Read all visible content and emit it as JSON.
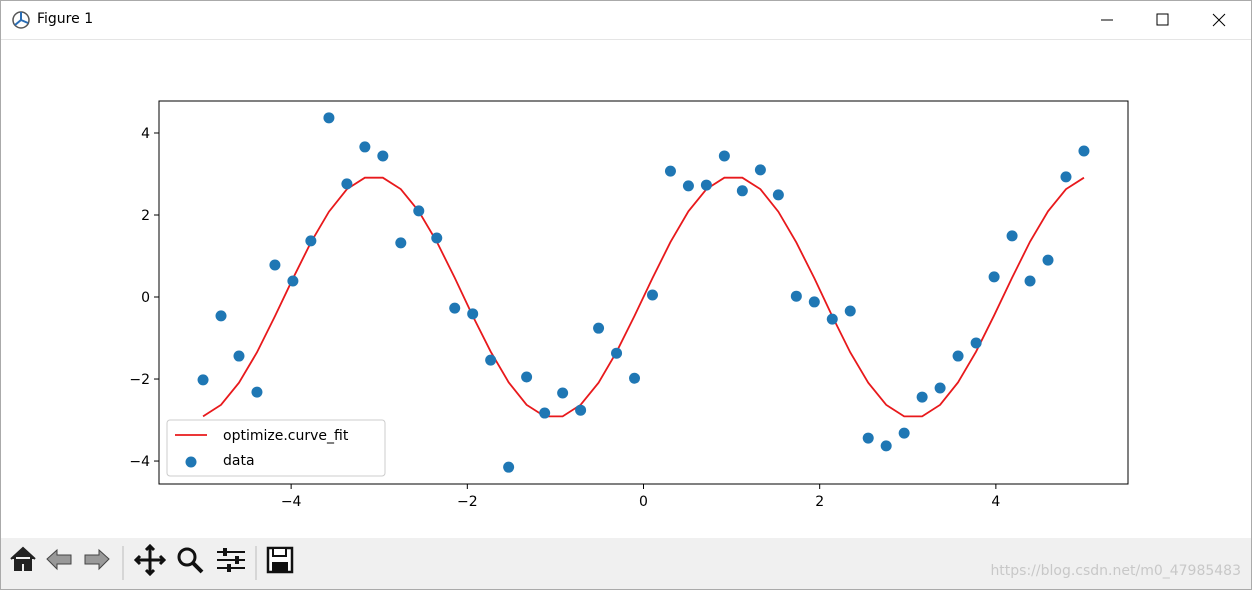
{
  "window": {
    "title": "Figure 1"
  },
  "watermark": "https://blog.csdn.net/m0_47985483",
  "chart_data": {
    "type": "scatter",
    "x": [
      -5.0,
      -4.796,
      -4.592,
      -4.388,
      -4.184,
      -3.98,
      -3.776,
      -3.571,
      -3.367,
      -3.163,
      -2.959,
      -2.755,
      -2.551,
      -2.347,
      -2.143,
      -1.939,
      -1.735,
      -1.531,
      -1.327,
      -1.122,
      -0.918,
      -0.714,
      -0.51,
      -0.306,
      -0.102,
      0.102,
      0.306,
      0.51,
      0.714,
      0.918,
      1.122,
      1.327,
      1.531,
      1.735,
      1.939,
      2.143,
      2.347,
      2.551,
      2.755,
      2.959,
      3.163,
      3.367,
      3.571,
      3.776,
      3.98,
      4.184,
      4.388,
      4.592,
      4.796,
      5.0
    ],
    "series": [
      {
        "name": "optimize.curve_fit",
        "color": "#e8191c",
        "style": "line",
        "values": [
          -2.91,
          -2.63,
          -2.09,
          -1.35,
          -0.47,
          0.45,
          1.33,
          2.08,
          2.63,
          2.91,
          2.91,
          2.63,
          2.09,
          1.35,
          0.47,
          -0.46,
          -1.33,
          -2.08,
          -2.63,
          -2.91,
          -2.91,
          -2.63,
          -2.09,
          -1.34,
          -0.46,
          0.46,
          1.34,
          2.09,
          2.63,
          2.91,
          2.91,
          2.63,
          2.08,
          1.33,
          0.46,
          -0.47,
          -1.35,
          -2.09,
          -2.63,
          -2.91,
          -2.91,
          -2.63,
          -2.08,
          -1.33,
          -0.45,
          0.47,
          1.35,
          2.09,
          2.63,
          2.91
        ]
      },
      {
        "name": "data",
        "color": "#1f77b4",
        "style": "markers",
        "values": [
          -2.02,
          -0.46,
          -1.44,
          -2.32,
          0.78,
          0.39,
          1.37,
          4.37,
          2.76,
          3.66,
          3.44,
          1.32,
          2.1,
          1.44,
          -0.27,
          -0.41,
          -1.54,
          -4.15,
          -1.95,
          -2.83,
          -2.34,
          -2.76,
          -0.76,
          -1.37,
          -1.98,
          0.05,
          3.07,
          2.71,
          2.73,
          3.44,
          2.59,
          3.1,
          2.49,
          0.02,
          -0.12,
          -0.54,
          -0.34,
          -3.44,
          -3.63,
          -3.32,
          -2.44,
          -2.22,
          -1.44,
          -1.12,
          0.49,
          1.49,
          0.39,
          0.9,
          2.93,
          3.56
        ]
      }
    ],
    "xlim": [
      -5.5,
      5.5
    ],
    "ylim": [
      -4.56,
      4.78
    ],
    "xticks": [
      {
        "value": -4,
        "label": "−4"
      },
      {
        "value": -2,
        "label": "−2"
      },
      0,
      2,
      4
    ],
    "yticks": [
      {
        "value": -4,
        "label": "−4"
      },
      {
        "value": -2,
        "label": "−2"
      },
      0,
      2,
      4
    ],
    "legend": "lower left"
  }
}
